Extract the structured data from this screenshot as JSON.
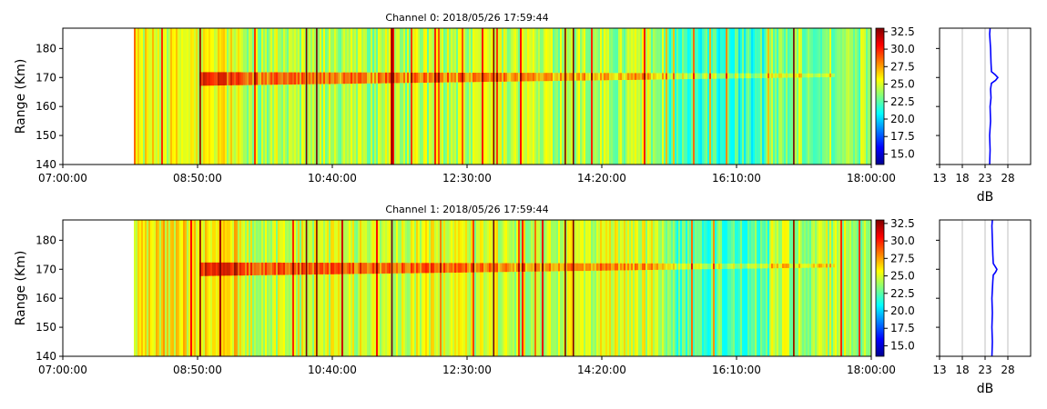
{
  "chart_data": [
    {
      "type": "heatmap",
      "title": "Channel 0: 2018/05/26 17:59:44",
      "ylabel": "Range (Km)",
      "x_ticks": [
        "07:00:00",
        "08:50:00",
        "10:40:00",
        "12:30:00",
        "14:20:00",
        "16:10:00",
        "18:00:00"
      ],
      "xlim_minutes": [
        420,
        1080
      ],
      "data_start_minute": 478,
      "y_ticks": [
        140,
        150,
        160,
        170,
        180
      ],
      "ylim": [
        140,
        187
      ],
      "colorbar": {
        "colormap": "jet",
        "range": [
          13.5,
          33
        ],
        "ticks": [
          "15.0",
          "17.5",
          "20.0",
          "22.5",
          "25.0",
          "27.5",
          "30.0",
          "32.5"
        ]
      },
      "echo_layer": {
        "range_km": 169.5,
        "from_minute": 531,
        "to_minute": 1050
      },
      "profile": {
        "xlabel": "dB",
        "x_ticks": [
          13,
          18,
          23,
          28
        ],
        "xlim": [
          13,
          33
        ],
        "range_km": [
          140,
          145,
          150,
          155,
          160,
          163,
          166,
          168,
          169,
          170,
          171,
          172,
          175,
          180,
          185,
          187
        ],
        "db": [
          24.0,
          24.1,
          24.0,
          24.2,
          24.1,
          24.3,
          24.2,
          24.4,
          25.3,
          25.8,
          25.2,
          24.4,
          24.3,
          24.2,
          24.0,
          24.1
        ]
      }
    },
    {
      "type": "heatmap",
      "title": "Channel 1: 2018/05/26 17:59:44",
      "ylabel": "Range (Km)",
      "x_ticks": [
        "07:00:00",
        "08:50:00",
        "10:40:00",
        "12:30:00",
        "14:20:00",
        "16:10:00",
        "18:00:00"
      ],
      "xlim_minutes": [
        420,
        1080
      ],
      "data_start_minute": 478,
      "y_ticks": [
        140,
        150,
        160,
        170,
        180
      ],
      "ylim": [
        140,
        187
      ],
      "colorbar": {
        "colormap": "jet",
        "range": [
          13.5,
          33
        ],
        "ticks": [
          "15.0",
          "17.5",
          "20.0",
          "22.5",
          "25.0",
          "27.5",
          "30.0",
          "32.5"
        ]
      },
      "echo_layer": {
        "range_km": 170,
        "from_minute": 531,
        "to_minute": 1050
      },
      "profile": {
        "xlabel": "dB",
        "x_ticks": [
          13,
          18,
          23,
          28
        ],
        "xlim": [
          13,
          33
        ],
        "range_km": [
          140,
          145,
          150,
          155,
          160,
          163,
          166,
          168,
          169,
          170,
          171,
          172,
          175,
          180,
          185,
          187
        ],
        "db": [
          24.5,
          24.6,
          24.5,
          24.6,
          24.5,
          24.6,
          24.7,
          24.8,
          25.3,
          25.6,
          25.2,
          24.8,
          24.7,
          24.6,
          24.5,
          24.6
        ]
      }
    }
  ]
}
